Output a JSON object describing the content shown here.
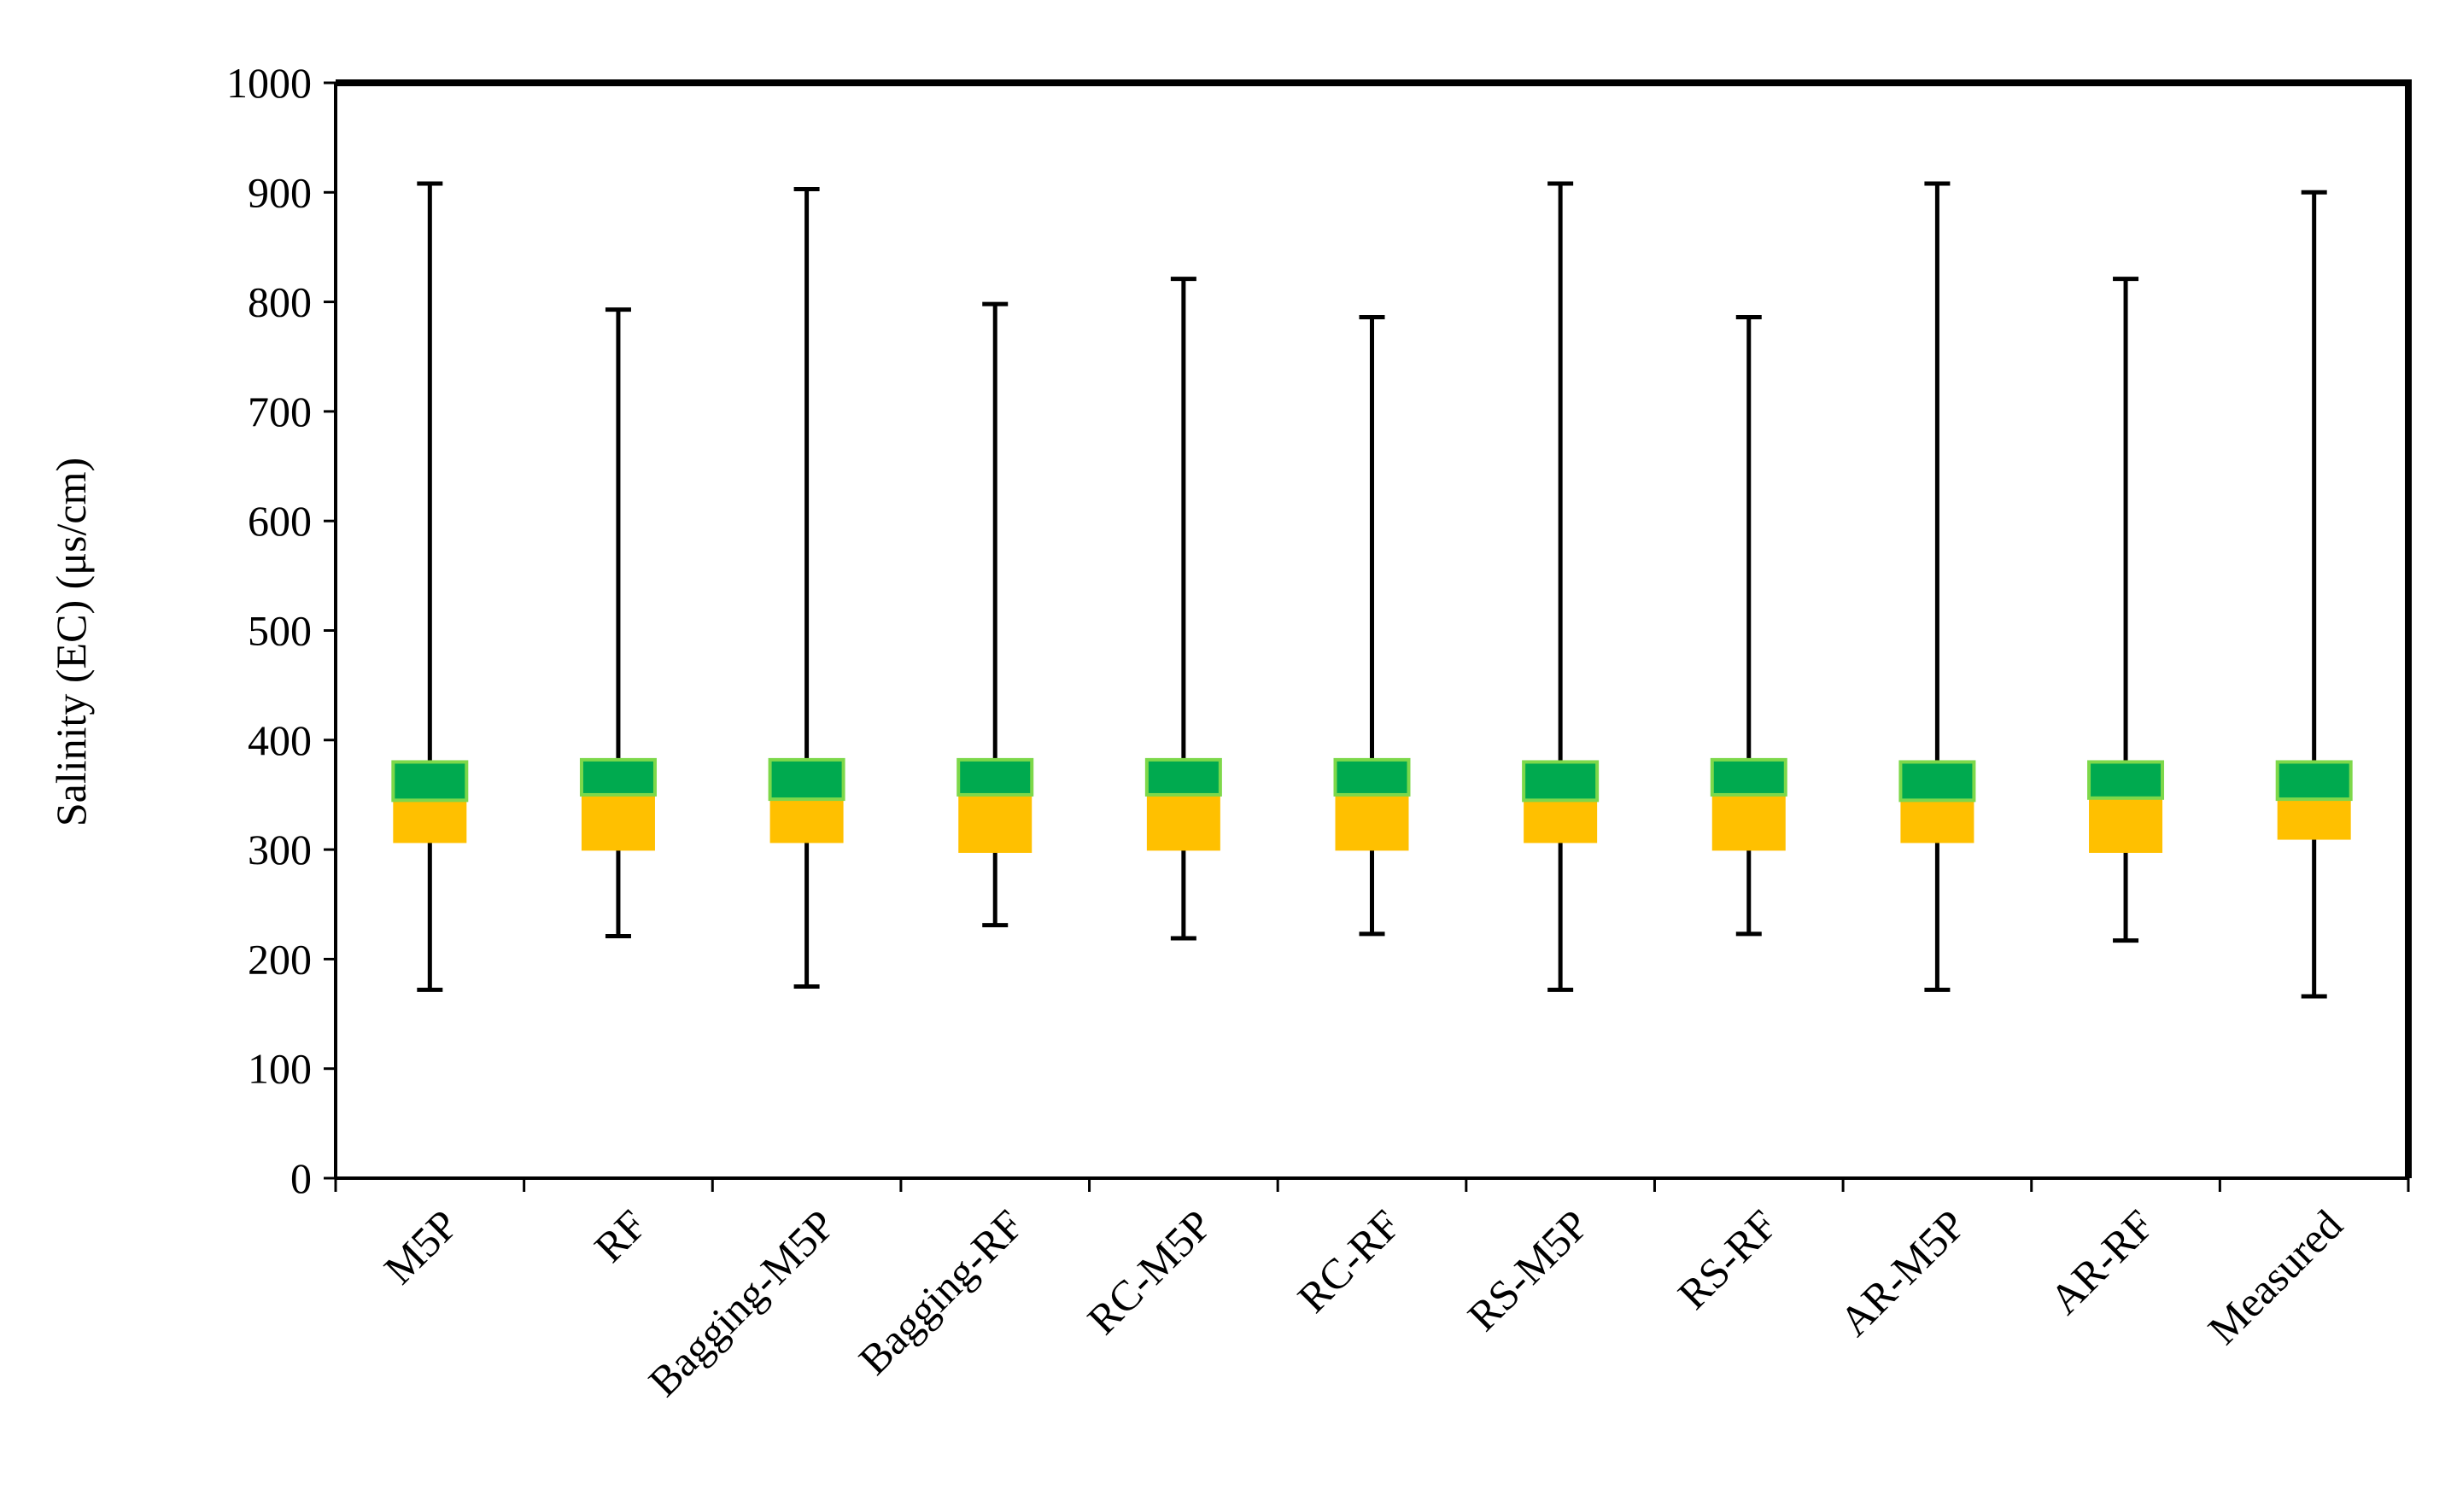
{
  "chart_data": {
    "type": "box",
    "ylabel": "Salinity (EC) (μs/cm)",
    "xlabel": "",
    "ylim": [
      0,
      1000
    ],
    "yticks": [
      0,
      100,
      200,
      300,
      400,
      500,
      600,
      700,
      800,
      900,
      1000
    ],
    "grid": false,
    "legend": "none",
    "categories": [
      "M5P",
      "RF",
      "Bagging-M5P",
      "Bagging-RF",
      "RC-M5P",
      "RC-RF",
      "RS-M5P",
      "RS-RF",
      "AR-M5P",
      "AR-RF",
      "Measured"
    ],
    "boxes": [
      {
        "label": "M5P",
        "min": 172,
        "q1": 306,
        "median": 345,
        "q3": 380,
        "max": 908
      },
      {
        "label": "RF",
        "min": 221,
        "q1": 299,
        "median": 350,
        "q3": 382,
        "max": 793
      },
      {
        "label": "Bagging-M5P",
        "min": 175,
        "q1": 306,
        "median": 346,
        "q3": 382,
        "max": 903
      },
      {
        "label": "Bagging-RF",
        "min": 231,
        "q1": 297,
        "median": 350,
        "q3": 382,
        "max": 798
      },
      {
        "label": "RC-M5P",
        "min": 219,
        "q1": 299,
        "median": 350,
        "q3": 382,
        "max": 821
      },
      {
        "label": "RC-RF",
        "min": 223,
        "q1": 299,
        "median": 350,
        "q3": 382,
        "max": 786
      },
      {
        "label": "RS-M5P",
        "min": 172,
        "q1": 306,
        "median": 345,
        "q3": 380,
        "max": 908
      },
      {
        "label": "RS-RF",
        "min": 223,
        "q1": 299,
        "median": 350,
        "q3": 382,
        "max": 786
      },
      {
        "label": "AR-M5P",
        "min": 172,
        "q1": 306,
        "median": 345,
        "q3": 380,
        "max": 908
      },
      {
        "label": "AR-RF",
        "min": 217,
        "q1": 297,
        "median": 347,
        "q3": 380,
        "max": 821
      },
      {
        "label": "Measured",
        "min": 166,
        "q1": 309,
        "median": 346,
        "q3": 380,
        "max": 900
      }
    ],
    "colors": {
      "upper_box": "#00aa4f",
      "upper_box_border": "#7dd84a",
      "lower_box": "#ffc000",
      "whisker": "#000000",
      "frame": "#000000"
    }
  }
}
